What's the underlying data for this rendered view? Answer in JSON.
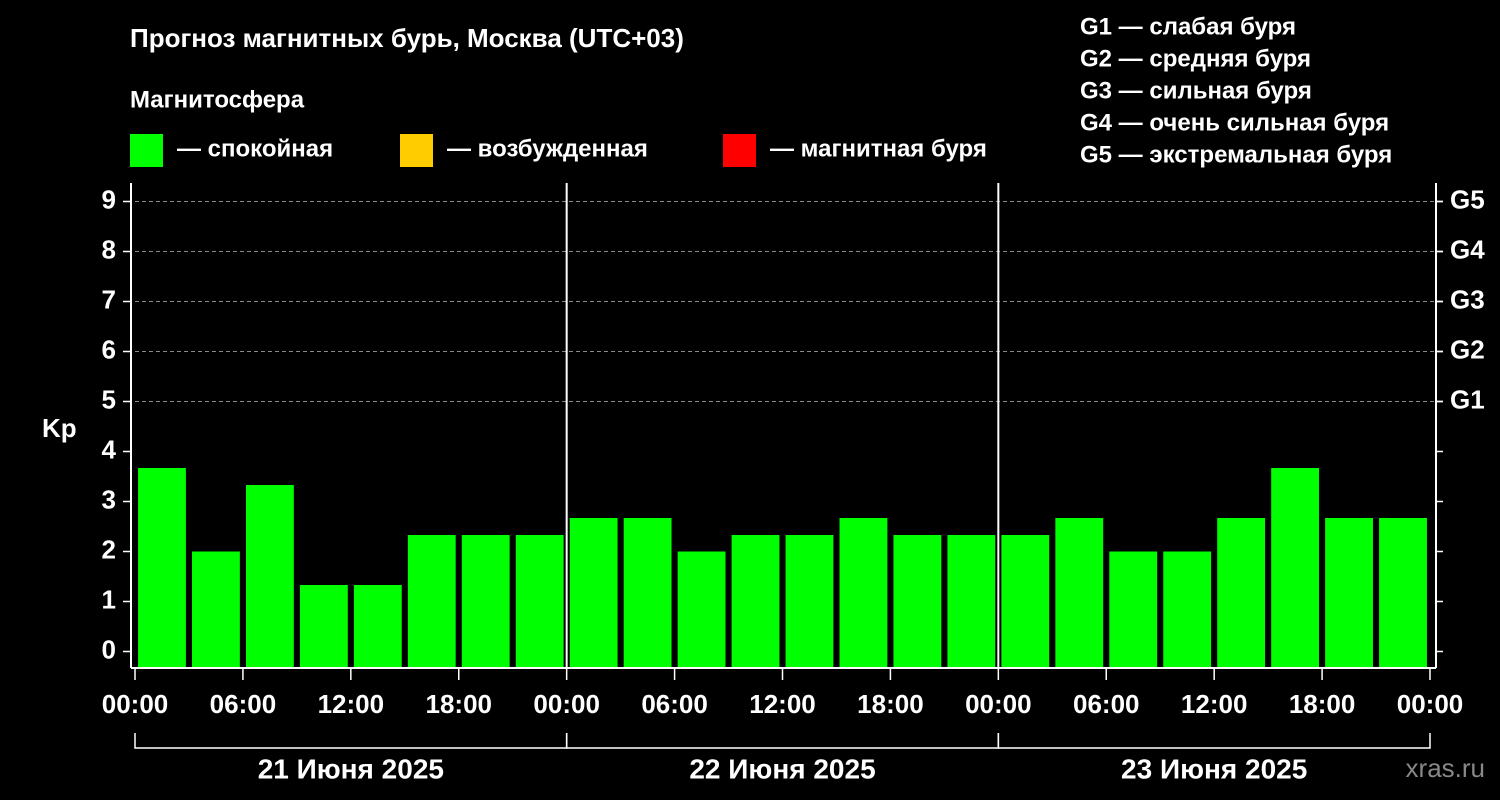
{
  "chart_data": {
    "type": "bar",
    "title": "Прогноз магнитных бурь, Москва (UTC+03)",
    "ylabel": "Kp",
    "watermark": "xras.ru",
    "legend": {
      "title": "Магнитосфера",
      "items": [
        {
          "color": "#00ff00",
          "label": "— спокойная"
        },
        {
          "color": "#ffcc00",
          "label": "— возбужденная"
        },
        {
          "color": "#ff0000",
          "label": "— магнитная буря"
        }
      ]
    },
    "g_scale": [
      "G1 — слабая буря",
      "G2 — средняя буря",
      "G3 — сильная буря",
      "G4 — очень сильная буря",
      "G5 — экстремальная буря"
    ],
    "x": [
      1.5,
      4.5,
      7.5,
      10.5,
      13.5,
      16.5,
      19.5,
      22.5,
      25.5,
      28.5,
      31.5,
      34.5,
      37.5,
      40.5,
      43.5,
      46.5,
      49.5,
      52.5,
      55.5,
      58.5,
      61.5,
      64.5,
      67.5,
      70.5
    ],
    "series": [
      {
        "name": "Kp",
        "color": "#00ff00",
        "values": [
          3.67,
          2.0,
          3.33,
          1.33,
          1.33,
          2.33,
          2.33,
          2.33,
          2.67,
          2.67,
          2.0,
          2.33,
          2.33,
          2.67,
          2.33,
          2.33,
          2.33,
          2.67,
          2.0,
          2.0,
          2.67,
          3.67,
          2.67,
          2.67
        ]
      }
    ],
    "xlim": [
      0,
      72
    ],
    "xticks": [
      {
        "value": 0,
        "label": "00:00"
      },
      {
        "value": 6,
        "label": "06:00"
      },
      {
        "value": 12,
        "label": "12:00"
      },
      {
        "value": 18,
        "label": "18:00"
      },
      {
        "value": 24,
        "label": "00:00"
      },
      {
        "value": 30,
        "label": "06:00"
      },
      {
        "value": 36,
        "label": "12:00"
      },
      {
        "value": 42,
        "label": "18:00"
      },
      {
        "value": 48,
        "label": "00:00"
      },
      {
        "value": 54,
        "label": "06:00"
      },
      {
        "value": 60,
        "label": "12:00"
      },
      {
        "value": 66,
        "label": "18:00"
      },
      {
        "value": 72,
        "label": "00:00"
      }
    ],
    "days": [
      {
        "label": "21 Июня 2025",
        "start": 0,
        "end": 24
      },
      {
        "label": "22 Июня 2025",
        "start": 24,
        "end": 48
      },
      {
        "label": "23 Июня 2025",
        "start": 48,
        "end": 72
      }
    ],
    "ylim": [
      -0.33,
      9.37
    ],
    "yticks": [
      0,
      1,
      2,
      3,
      4,
      5,
      6,
      7,
      8,
      9
    ],
    "y2lim": [
      -0.33,
      9.37
    ],
    "y2ticks": [
      {
        "value": 5,
        "label": "G1"
      },
      {
        "value": 6,
        "label": "G2"
      },
      {
        "value": 7,
        "label": "G3"
      },
      {
        "value": 8,
        "label": "G4"
      },
      {
        "value": 9,
        "label": "G5"
      }
    ],
    "grid": true
  }
}
